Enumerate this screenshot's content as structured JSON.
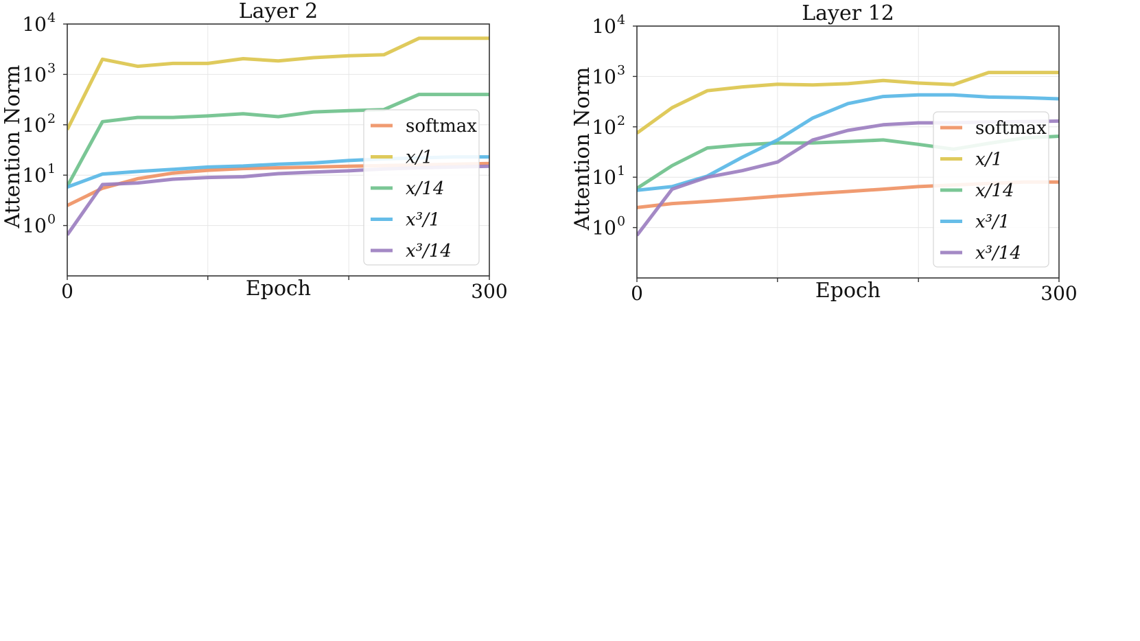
{
  "figure": {
    "x_axis_label": "Epoch",
    "y_axis_label": "Attention Norm"
  },
  "legend": {
    "items": [
      {
        "key": "softmax",
        "label": "softmax",
        "italic": false
      },
      {
        "key": "x1",
        "label": "x/1",
        "italic": true
      },
      {
        "key": "x14",
        "label": "x/14",
        "italic": true
      },
      {
        "key": "x31",
        "label": "x³/1",
        "italic": true
      },
      {
        "key": "x314",
        "label": "x³/14",
        "italic": true
      }
    ]
  },
  "colors": {
    "softmax": "#ee9062",
    "x1": "#dcc44a",
    "x14": "#6cc08a",
    "x31": "#55b6e6",
    "x314": "#9a7cbf"
  },
  "chart_data": [
    {
      "type": "line",
      "title": "Layer 2",
      "xlabel": "Epoch",
      "ylabel": "Attention Norm",
      "yscale": "log",
      "xlim": [
        0,
        300
      ],
      "ylim_log10": [
        -1,
        4
      ],
      "y_tick_labels": [
        "10",
        "10",
        "10",
        "10",
        "10"
      ],
      "y_tick_exponents": [
        "0",
        "1",
        "2",
        "3",
        "4"
      ],
      "x_tick_labels": [
        "0",
        "300"
      ],
      "legend_position": "right",
      "x": [
        0,
        25,
        50,
        75,
        100,
        125,
        150,
        175,
        200,
        225,
        250,
        275,
        300
      ],
      "series": [
        {
          "key": "softmax",
          "name": "softmax",
          "values": [
            2.5,
            5.5,
            8.5,
            11,
            12.5,
            13.5,
            14,
            14.5,
            15,
            15.5,
            16,
            16.5,
            17
          ]
        },
        {
          "key": "x1",
          "name": "x/1",
          "values": [
            80,
            2000,
            1450,
            1650,
            1650,
            2050,
            1850,
            2150,
            2350,
            2450,
            5200,
            5200,
            5200
          ]
        },
        {
          "key": "x14",
          "name": "x/14",
          "values": [
            6,
            115,
            140,
            140,
            150,
            165,
            145,
            180,
            190,
            200,
            400,
            400,
            400
          ]
        },
        {
          "key": "x31",
          "name": "x³/1",
          "values": [
            5.8,
            10.5,
            11.8,
            13,
            14.5,
            15.2,
            16.5,
            17.5,
            19.5,
            21,
            22,
            23,
            23
          ]
        },
        {
          "key": "x314",
          "name": "x³/14",
          "values": [
            0.65,
            6.5,
            7,
            8.3,
            9,
            9.3,
            10.7,
            11.5,
            12.2,
            13.2,
            14,
            14.5,
            15
          ]
        }
      ]
    },
    {
      "type": "line",
      "title": "Layer 12",
      "xlabel": "Epoch",
      "ylabel": "Attention Norm",
      "yscale": "log",
      "xlim": [
        0,
        300
      ],
      "ylim_log10": [
        -1,
        4
      ],
      "y_tick_labels": [
        "10",
        "10",
        "10",
        "10",
        "10"
      ],
      "y_tick_exponents": [
        "0",
        "1",
        "2",
        "3",
        "4"
      ],
      "x_tick_labels": [
        "0",
        "300"
      ],
      "legend_position": "right",
      "x": [
        0,
        25,
        50,
        75,
        100,
        125,
        150,
        175,
        200,
        225,
        250,
        275,
        300
      ],
      "series": [
        {
          "key": "softmax",
          "name": "softmax",
          "values": [
            2.5,
            3.0,
            3.3,
            3.7,
            4.2,
            4.7,
            5.2,
            5.8,
            6.5,
            7.0,
            7.5,
            8.0,
            8.0
          ]
        },
        {
          "key": "x1",
          "name": "x/1",
          "values": [
            75,
            240,
            520,
            620,
            700,
            680,
            720,
            830,
            740,
            690,
            1200,
            1200,
            1200
          ]
        },
        {
          "key": "x14",
          "name": "x/14",
          "values": [
            6,
            17,
            38,
            44,
            48,
            48,
            51,
            55,
            45,
            36,
            47,
            60,
            65
          ]
        },
        {
          "key": "x31",
          "name": "x³/1",
          "values": [
            5.5,
            6.5,
            10.5,
            25,
            55,
            150,
            290,
            400,
            430,
            430,
            390,
            380,
            360
          ]
        },
        {
          "key": "x314",
          "name": "x³/14",
          "values": [
            0.7,
            5.8,
            10,
            13.5,
            20,
            55,
            85,
            110,
            120,
            120,
            125,
            127,
            130
          ]
        }
      ]
    }
  ]
}
